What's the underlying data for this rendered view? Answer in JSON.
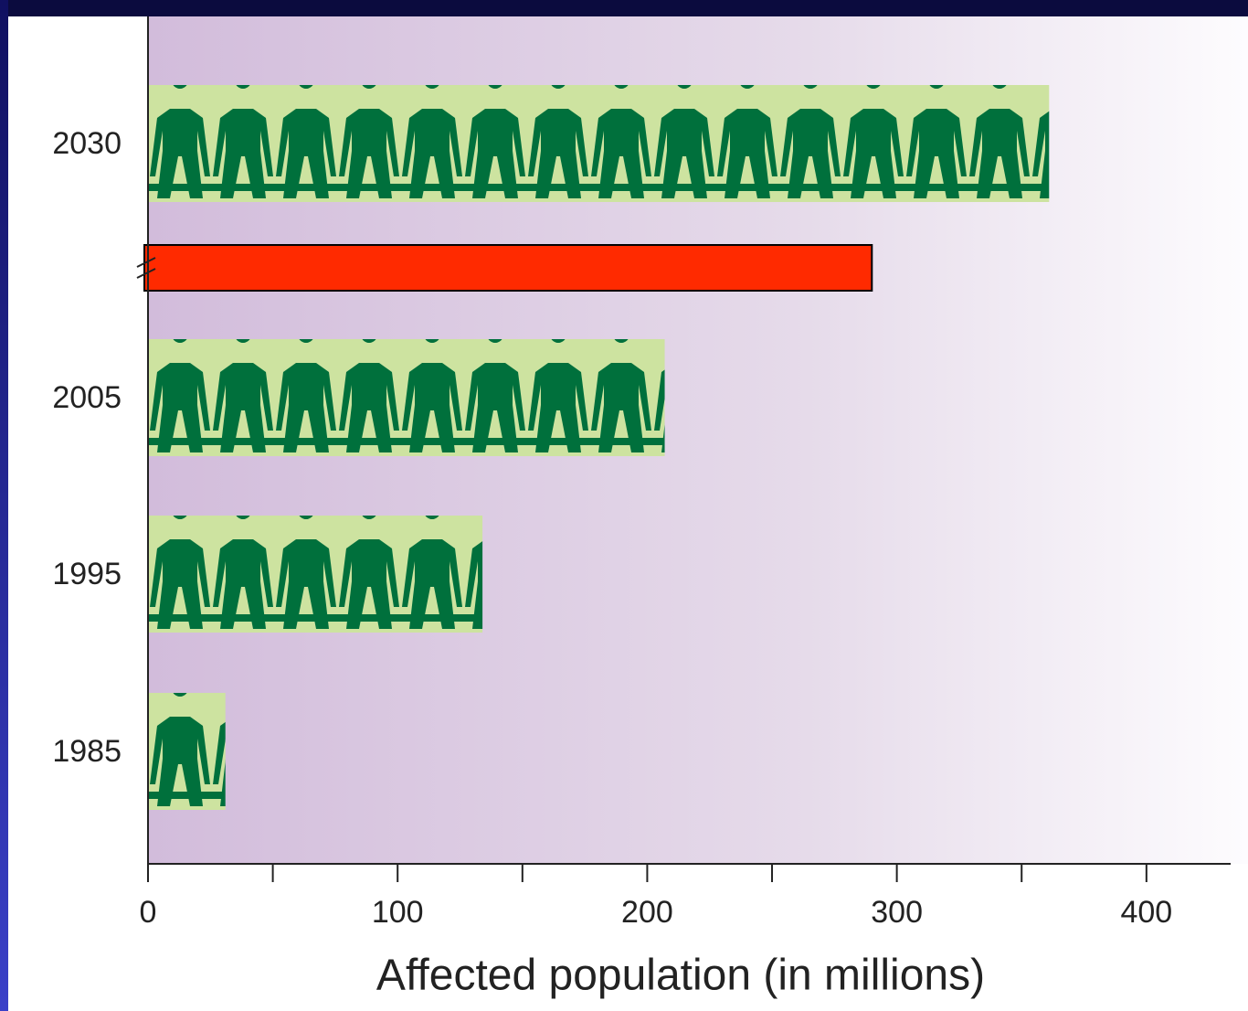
{
  "chart_data": {
    "type": "bar",
    "orientation": "horizontal",
    "x_label": "Affected population (in millions)",
    "categories": [
      "2030",
      null,
      "2005",
      "1995",
      "1985"
    ],
    "values": [
      361,
      290,
      207,
      134,
      31
    ],
    "colors": [
      "#cde3a0",
      "#ff2a00",
      "#cde3a0",
      "#cde3a0",
      "#cde3a0"
    ],
    "pictogram": [
      true,
      false,
      true,
      true,
      true
    ],
    "figure_color": "#00703c",
    "xlim": [
      0,
      433
    ],
    "xticks": [
      0,
      100,
      200,
      300,
      400
    ],
    "minor_xticks": [
      50,
      150,
      250,
      350
    ]
  }
}
